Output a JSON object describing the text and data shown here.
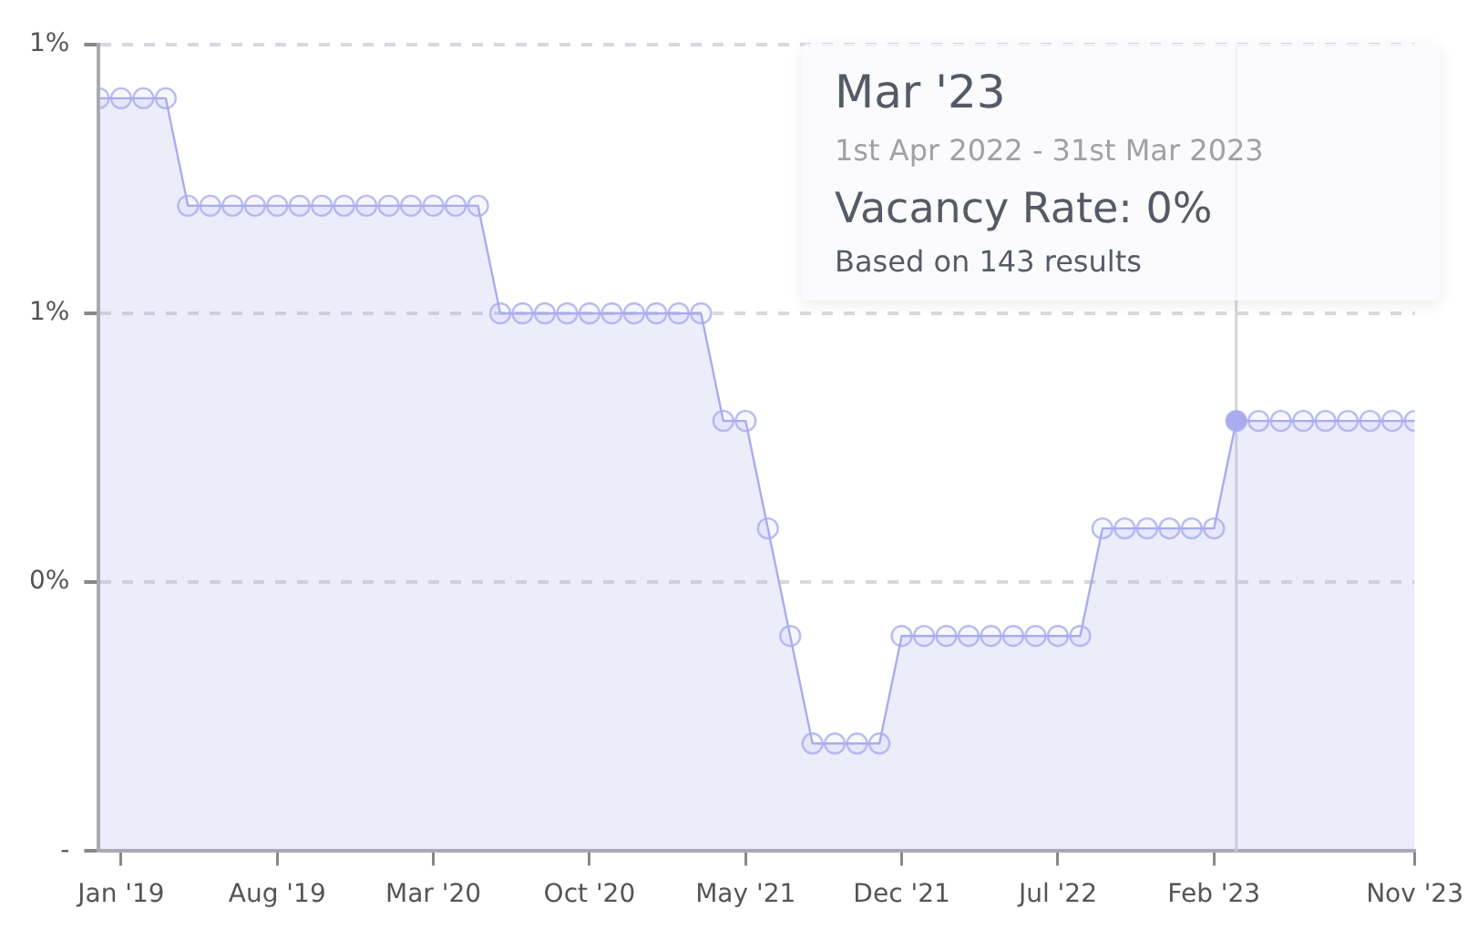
{
  "chart_data": {
    "type": "area",
    "x": [
      "2018-12",
      "2019-01",
      "2019-02",
      "2019-03",
      "2019-04",
      "2019-05",
      "2019-06",
      "2019-07",
      "2019-08",
      "2019-09",
      "2019-10",
      "2019-11",
      "2019-12",
      "2020-01",
      "2020-02",
      "2020-03",
      "2020-04",
      "2020-05",
      "2020-06",
      "2020-07",
      "2020-08",
      "2020-09",
      "2020-10",
      "2020-11",
      "2020-12",
      "2021-01",
      "2021-02",
      "2021-03",
      "2021-04",
      "2021-05",
      "2021-06",
      "2021-07",
      "2021-08",
      "2021-09",
      "2021-10",
      "2021-11",
      "2021-12",
      "2022-01",
      "2022-02",
      "2022-03",
      "2022-04",
      "2022-05",
      "2022-06",
      "2022-07",
      "2022-08",
      "2022-09",
      "2022-10",
      "2022-11",
      "2022-12",
      "2023-01",
      "2023-02",
      "2023-03",
      "2023-04",
      "2023-05",
      "2023-06",
      "2023-07",
      "2023-08",
      "2023-09",
      "2023-10",
      "2023-11"
    ],
    "series": [
      {
        "color": "#a9acee",
        "values": [
          1.4,
          1.4,
          1.4,
          1.4,
          1.2,
          1.2,
          1.2,
          1.2,
          1.2,
          1.2,
          1.2,
          1.2,
          1.2,
          1.2,
          1.2,
          1.2,
          1.2,
          1.2,
          1.0,
          1.0,
          1.0,
          1.0,
          1.0,
          1.0,
          1.0,
          1.0,
          1.0,
          1.0,
          0.8,
          0.8,
          0.6,
          0.4,
          0.2,
          0.2,
          0.2,
          0.2,
          0.4,
          0.4,
          0.4,
          0.4,
          0.4,
          0.4,
          0.4,
          0.4,
          0.4,
          0.6,
          0.6,
          0.6,
          0.6,
          0.6,
          0.6,
          0.8,
          0.8,
          0.8,
          0.8,
          0.8,
          0.8,
          0.8,
          0.8,
          0.8
        ]
      }
    ],
    "xlim": [
      "2018-12",
      "2023-11"
    ],
    "xticks": [
      {
        "value": "2019-01",
        "label": "Jan '19"
      },
      {
        "value": "2019-08",
        "label": "Aug '19"
      },
      {
        "value": "2020-03",
        "label": "Mar '20"
      },
      {
        "value": "2020-10",
        "label": "Oct '20"
      },
      {
        "value": "2021-05",
        "label": "May '21"
      },
      {
        "value": "2021-12",
        "label": "Dec '21"
      },
      {
        "value": "2022-07",
        "label": "Jul '22"
      },
      {
        "value": "2023-02",
        "label": "Feb '23"
      },
      {
        "value": "2023-11",
        "label": "Nov '23"
      }
    ],
    "ylim": [
      0,
      1.5
    ],
    "yticks": [
      {
        "value": 0,
        "label": "-"
      },
      {
        "value": 0.5,
        "label": "0%"
      },
      {
        "value": 1,
        "label": "1%"
      },
      {
        "value": 1.5,
        "label": "1%"
      }
    ],
    "grid": "y",
    "marker": "circle",
    "legend": false,
    "ref_lines": [
      {
        "axis": "x",
        "value": "2023-03",
        "color": "#d4d4da"
      }
    ],
    "annotations": [
      "Mar '23",
      "1st Apr 2022 - 31st Mar 2023",
      "Vacancy Rate: 0%",
      "Based on 143 results"
    ]
  }
}
